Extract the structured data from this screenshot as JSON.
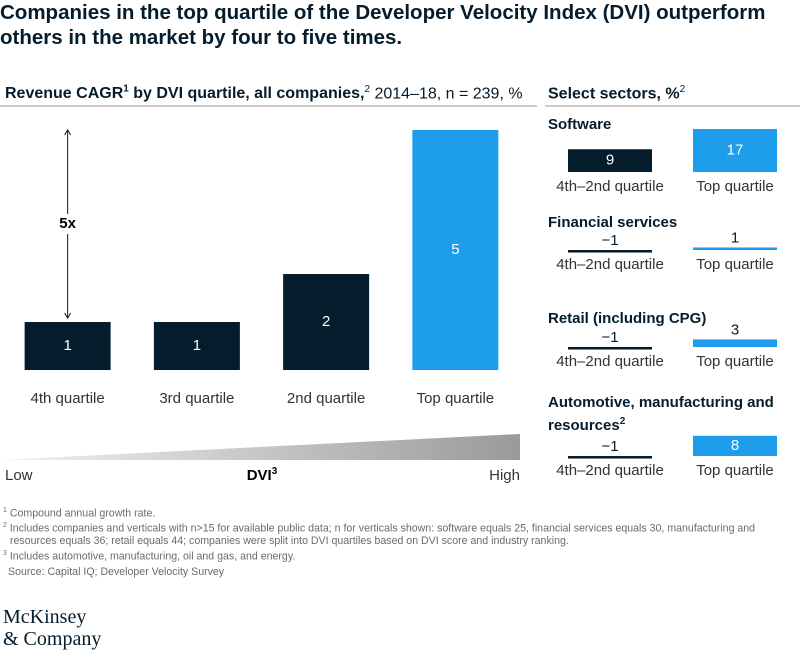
{
  "title": "Companies in the top quartile of the Developer Velocity Index (DVI) outperform others in the market by four to five times.",
  "sectors_title": [
    "Select sectors, %",
    "2"
  ],
  "chart_data": [
    {
      "type": "bar",
      "title": [
        "Revenue CAGR",
        "1",
        " by DVI quartile, all companies,",
        "2",
        " 2014–18, n = 239, %"
      ],
      "categories": [
        "4th quartile",
        "3rd quartile",
        "2nd quartile",
        "Top quartile"
      ],
      "values": [
        1,
        1,
        2,
        5
      ],
      "colors": [
        "#051c2c",
        "#051c2c",
        "#051c2c",
        "#1f9ded"
      ],
      "ylim": [
        0,
        5
      ],
      "annotation": "5x",
      "xlabel": [
        "DVI",
        "3"
      ],
      "xrange_labels": [
        "Low",
        "High"
      ]
    },
    {
      "type": "bar",
      "title": [
        "Software"
      ],
      "categories": [
        "4th–2nd quartile",
        "Top quartile"
      ],
      "values": [
        9,
        17
      ],
      "colors": [
        "#051c2c",
        "#1f9ded"
      ],
      "ylim": [
        0,
        17
      ]
    },
    {
      "type": "bar",
      "title": [
        "Financial services"
      ],
      "categories": [
        "4th–2nd quartile",
        "Top quartile"
      ],
      "values": [
        -1,
        1
      ],
      "value_labels": [
        "−1",
        "1"
      ],
      "colors": [
        "#051c2c",
        "#1f9ded"
      ],
      "ylim": [
        0,
        17
      ]
    },
    {
      "type": "bar",
      "title": [
        "Retail (including CPG)"
      ],
      "categories": [
        "4th–2nd quartile",
        "Top quartile"
      ],
      "values": [
        -1,
        3
      ],
      "value_labels": [
        "−1",
        "3"
      ],
      "colors": [
        "#051c2c",
        "#1f9ded"
      ],
      "ylim": [
        0,
        17
      ]
    },
    {
      "type": "bar",
      "title": [
        "Automotive, manufacturing and resources",
        "2"
      ],
      "categories": [
        "4th–2nd quartile",
        "Top quartile"
      ],
      "values": [
        -1,
        8
      ],
      "value_labels": [
        "−1",
        "8"
      ],
      "colors": [
        "#051c2c",
        "#1f9ded"
      ],
      "ylim": [
        0,
        17
      ]
    }
  ],
  "footnotes": [
    {
      "mark": "1",
      "text": "Compound annual growth rate."
    },
    {
      "mark": "2",
      "text": "Includes companies and verticals with n>15 for available public data; n for verticals shown: software equals 25, financial services equals 30, manufacturing and resources equals 36; retail equals 44; companies were split into DVI quartiles based on DVI score and industry ranking."
    },
    {
      "mark": "3",
      "text": "Includes automotive, manufacturing, oil and gas, and energy."
    }
  ],
  "source": "Source: Capital IQ; Developer Velocity Survey",
  "logo": [
    "McKinsey",
    "& Company"
  ]
}
